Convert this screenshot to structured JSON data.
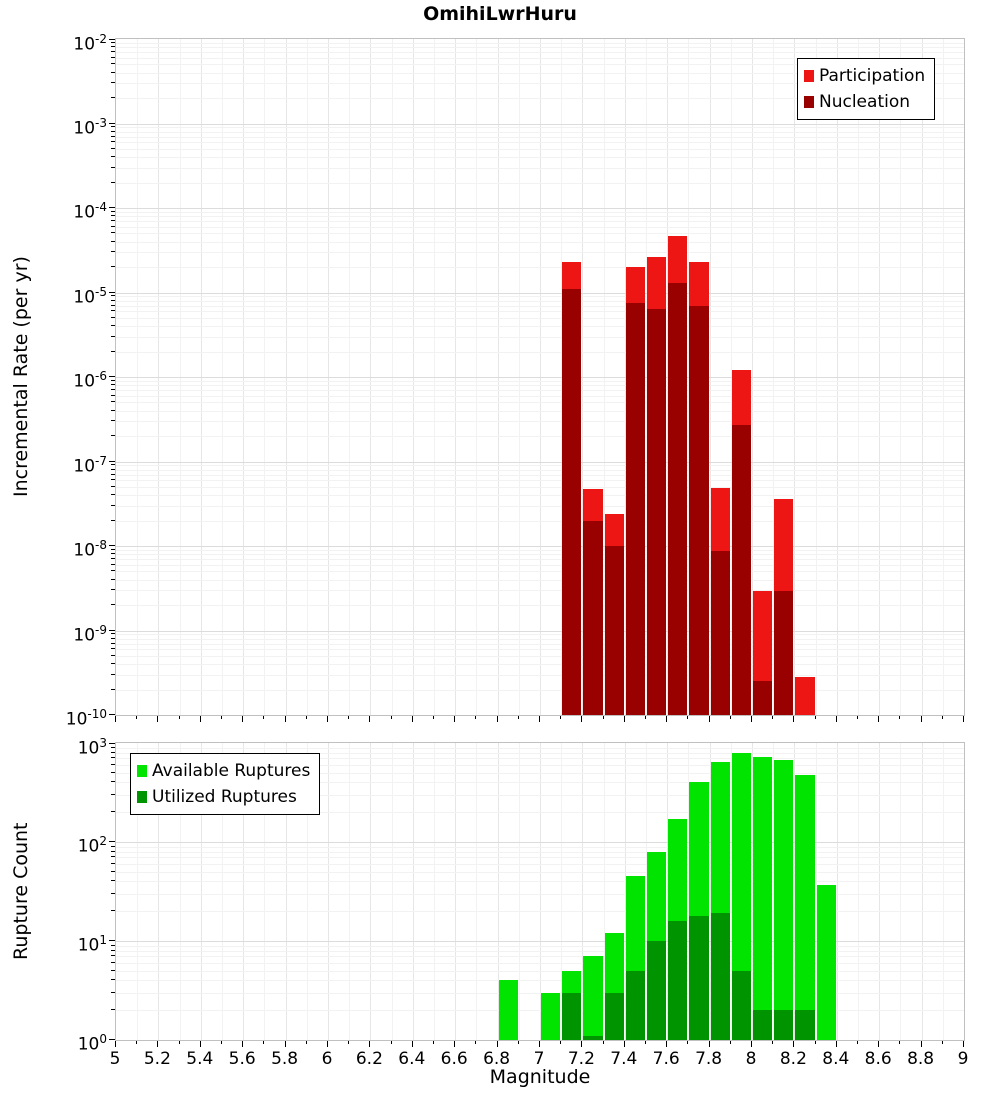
{
  "title": "OmihiLwrHuru",
  "axes": {
    "x_label": "Magnitude",
    "x_min": 5,
    "x_max": 9,
    "x_tick_step": 0.2,
    "x_ticks": [
      "5",
      "5.2",
      "5.4",
      "5.6",
      "5.8",
      "6",
      "6.2",
      "6.4",
      "6.6",
      "6.8",
      "7",
      "7.2",
      "7.4",
      "7.6",
      "7.8",
      "8",
      "8.2",
      "8.4",
      "8.6",
      "8.8",
      "9"
    ]
  },
  "chart_data": [
    {
      "type": "bar",
      "panel": "top",
      "title": "OmihiLwrHuru",
      "xlabel": "Magnitude",
      "ylabel": "Incremental Rate (per yr)",
      "y_scale": "log",
      "y_range": [
        1e-10,
        0.01
      ],
      "y_tick_exponents": [
        -2,
        -3,
        -4,
        -5,
        -6,
        -7,
        -8,
        -9,
        -10
      ],
      "x_range": [
        5,
        9
      ],
      "bin_width": 0.1,
      "grid": true,
      "legend_position": "top-right",
      "bin_centers": [
        7.15,
        7.25,
        7.35,
        7.45,
        7.55,
        7.65,
        7.75,
        7.85,
        7.95,
        8.05,
        8.15,
        8.25
      ],
      "series": [
        {
          "name": "Participation",
          "color": "#ee1515",
          "values": [
            2.3e-05,
            4.7e-08,
            2.4e-08,
            2e-05,
            2.6e-05,
            4.7e-05,
            2.3e-05,
            4.8e-08,
            1.2e-06,
            2.9e-09,
            3.6e-08,
            2.8e-10
          ]
        },
        {
          "name": "Nucleation",
          "color": "#990000",
          "values": [
            1.1e-05,
            2e-08,
            1e-08,
            7.6e-06,
            6.3e-06,
            1.3e-05,
            7e-06,
            8.7e-09,
            2.7e-07,
            2.5e-10,
            2.9e-09,
            null
          ]
        }
      ]
    },
    {
      "type": "bar",
      "panel": "bottom",
      "xlabel": "Magnitude",
      "ylabel": "Rupture Count",
      "y_scale": "log",
      "y_range": [
        1,
        1000
      ],
      "y_tick_exponents": [
        0,
        1,
        2,
        3
      ],
      "x_range": [
        5,
        9
      ],
      "bin_width": 0.1,
      "grid": true,
      "legend_position": "top-left",
      "bin_centers": [
        6.85,
        7.05,
        7.15,
        7.25,
        7.35,
        7.45,
        7.55,
        7.65,
        7.75,
        7.85,
        7.95,
        8.05,
        8.15,
        8.25,
        8.35
      ],
      "series": [
        {
          "name": "Available Ruptures",
          "color": "#00e400",
          "values": [
            4,
            3,
            5,
            7,
            12,
            45,
            80,
            170,
            400,
            650,
            800,
            730,
            680,
            480,
            37
          ]
        },
        {
          "name": "Utilized Ruptures",
          "color": "#009400",
          "values": [
            null,
            null,
            3,
            1.1,
            3,
            5,
            10,
            16,
            18,
            19,
            5,
            2,
            2,
            2,
            null
          ]
        }
      ]
    }
  ]
}
